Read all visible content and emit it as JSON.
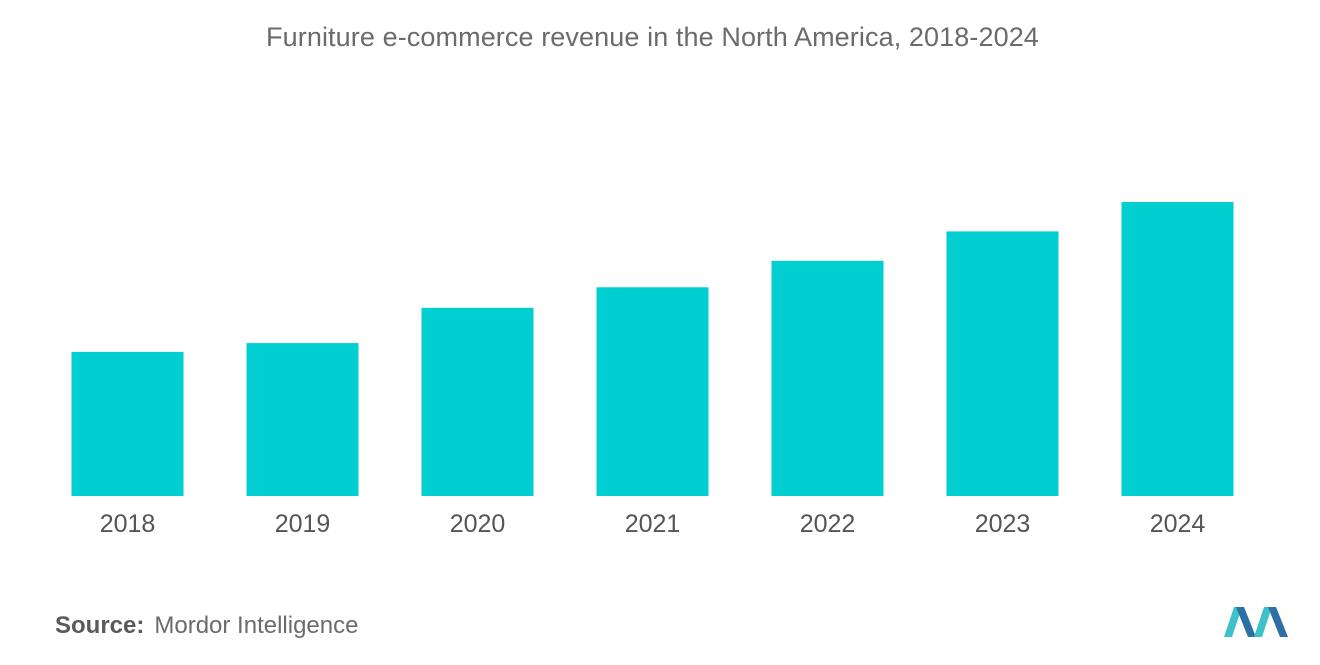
{
  "title": "Furniture e-commerce revenue in the North America, 2018-2024",
  "source": {
    "label": "Source:",
    "name": "Mordor Intelligence"
  },
  "colors": {
    "bar": "#00CED1",
    "tick_text": "#555555",
    "title_text": "#6b6b6b",
    "logo_dark": "#2E6FA6",
    "logo_light": "#3FC1C9"
  },
  "logo": {
    "icon": "mordor-intelligence-logo-icon"
  },
  "chart_data": {
    "type": "bar",
    "title": "Furniture e-commerce revenue in the North America, 2018-2024",
    "categories": [
      "2018",
      "2019",
      "2020",
      "2021",
      "2022",
      "2023",
      "2024"
    ],
    "values": [
      49,
      52,
      64,
      71,
      80,
      90,
      100
    ],
    "xlabel": "",
    "ylabel": "",
    "ylim": [
      0,
      100
    ],
    "grid": false,
    "legend": "none"
  }
}
